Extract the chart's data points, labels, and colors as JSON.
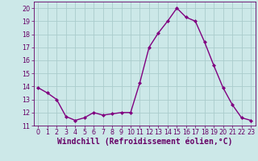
{
  "x": [
    0,
    1,
    2,
    3,
    4,
    5,
    6,
    7,
    8,
    9,
    10,
    11,
    12,
    13,
    14,
    15,
    16,
    17,
    18,
    19,
    20,
    21,
    22,
    23
  ],
  "y": [
    13.9,
    13.5,
    13.0,
    11.7,
    11.4,
    11.6,
    12.0,
    11.8,
    11.9,
    12.0,
    12.0,
    14.3,
    17.0,
    18.1,
    19.0,
    20.0,
    19.3,
    19.0,
    17.4,
    15.6,
    13.9,
    12.6,
    11.6,
    11.4
  ],
  "line_color": "#800080",
  "marker": "D",
  "marker_size": 2.0,
  "bg_color": "#cce8e8",
  "grid_color": "#aacccc",
  "xlabel": "Windchill (Refroidissement éolien,°C)",
  "ylim": [
    11,
    20.5
  ],
  "xlim": [
    -0.5,
    23.5
  ],
  "yticks": [
    11,
    12,
    13,
    14,
    15,
    16,
    17,
    18,
    19,
    20
  ],
  "xticks": [
    0,
    1,
    2,
    3,
    4,
    5,
    6,
    7,
    8,
    9,
    10,
    11,
    12,
    13,
    14,
    15,
    16,
    17,
    18,
    19,
    20,
    21,
    22,
    23
  ],
  "tick_label_fontsize": 5.8,
  "xlabel_fontsize": 7.0,
  "line_width": 1.0
}
